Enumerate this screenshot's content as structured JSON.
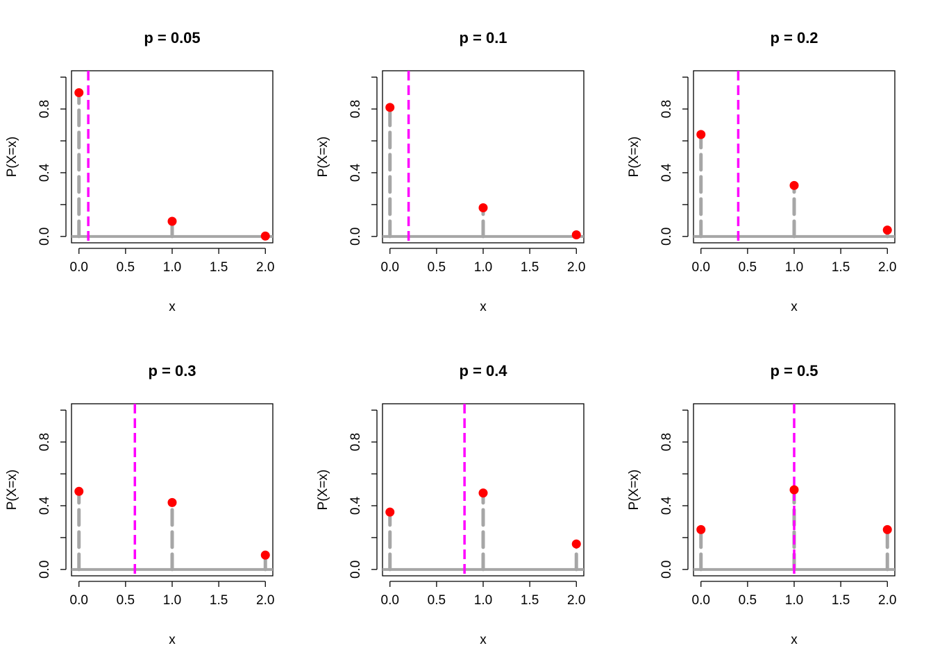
{
  "colors": {
    "points": "#ff0000",
    "stems": "#a6a6a6",
    "mean_line": "#ff00ff",
    "baseline": "#a6a6a6",
    "frame": "#000000"
  },
  "chart_data": [
    {
      "type": "scatter",
      "title": "p =  0.05",
      "xlabel": "x",
      "ylabel": "P(X=x)",
      "x": [
        0,
        1,
        2
      ],
      "y": [
        0.9025,
        0.095,
        0.0025
      ],
      "mean_line_x": 0.1,
      "xlim": [
        0,
        2
      ],
      "ylim": [
        0,
        1
      ],
      "xticks": [
        "0.0",
        "0.5",
        "1.0",
        "1.5",
        "2.0"
      ],
      "yticks": [
        "0.0",
        "0.4",
        "0.8"
      ],
      "grid": false
    },
    {
      "type": "scatter",
      "title": "p =  0.1",
      "xlabel": "x",
      "ylabel": "P(X=x)",
      "x": [
        0,
        1,
        2
      ],
      "y": [
        0.81,
        0.18,
        0.01
      ],
      "mean_line_x": 0.2,
      "xlim": [
        0,
        2
      ],
      "ylim": [
        0,
        1
      ],
      "xticks": [
        "0.0",
        "0.5",
        "1.0",
        "1.5",
        "2.0"
      ],
      "yticks": [
        "0.0",
        "0.4",
        "0.8"
      ],
      "grid": false
    },
    {
      "type": "scatter",
      "title": "p =  0.2",
      "xlabel": "x",
      "ylabel": "P(X=x)",
      "x": [
        0,
        1,
        2
      ],
      "y": [
        0.64,
        0.32,
        0.04
      ],
      "mean_line_x": 0.4,
      "xlim": [
        0,
        2
      ],
      "ylim": [
        0,
        1
      ],
      "xticks": [
        "0.0",
        "0.5",
        "1.0",
        "1.5",
        "2.0"
      ],
      "yticks": [
        "0.0",
        "0.4",
        "0.8"
      ],
      "grid": false
    },
    {
      "type": "scatter",
      "title": "p =  0.3",
      "xlabel": "x",
      "ylabel": "P(X=x)",
      "x": [
        0,
        1,
        2
      ],
      "y": [
        0.49,
        0.42,
        0.09
      ],
      "mean_line_x": 0.6,
      "xlim": [
        0,
        2
      ],
      "ylim": [
        0,
        1
      ],
      "xticks": [
        "0.0",
        "0.5",
        "1.0",
        "1.5",
        "2.0"
      ],
      "yticks": [
        "0.0",
        "0.4",
        "0.8"
      ],
      "grid": false
    },
    {
      "type": "scatter",
      "title": "p =  0.4",
      "xlabel": "x",
      "ylabel": "P(X=x)",
      "x": [
        0,
        1,
        2
      ],
      "y": [
        0.36,
        0.48,
        0.16
      ],
      "mean_line_x": 0.8,
      "xlim": [
        0,
        2
      ],
      "ylim": [
        0,
        1
      ],
      "xticks": [
        "0.0",
        "0.5",
        "1.0",
        "1.5",
        "2.0"
      ],
      "yticks": [
        "0.0",
        "0.4",
        "0.8"
      ],
      "grid": false
    },
    {
      "type": "scatter",
      "title": "p =  0.5",
      "xlabel": "x",
      "ylabel": "P(X=x)",
      "x": [
        0,
        1,
        2
      ],
      "y": [
        0.25,
        0.5,
        0.25
      ],
      "mean_line_x": 1.0,
      "xlim": [
        0,
        2
      ],
      "ylim": [
        0,
        1
      ],
      "xticks": [
        "0.0",
        "0.5",
        "1.0",
        "1.5",
        "2.0"
      ],
      "yticks": [
        "0.0",
        "0.4",
        "0.8"
      ],
      "grid": false
    }
  ]
}
